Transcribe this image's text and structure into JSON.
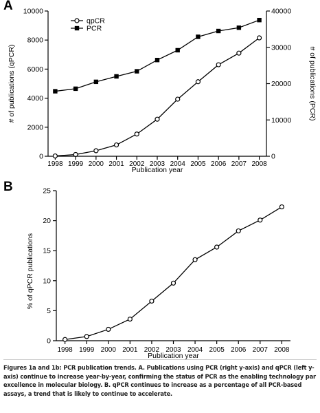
{
  "panels": {
    "a_letter": "A",
    "b_letter": "B"
  },
  "caption": "Figures 1a and 1b: PCR publication trends. A. Publications using PCR (right y-axis) and qPCR (left y-axis) continue to increase year-by-year, confirming the status of PCR as the enabling technology par excellence in molecular biology. B. qPCR continues to increase as a percentage of all PCR-based assays, a trend that is likely to continue to accelerate.",
  "chart_data": [
    {
      "type": "line",
      "panel": "A",
      "x": [
        1998,
        1999,
        2000,
        2001,
        2002,
        2003,
        2004,
        2005,
        2006,
        2007,
        2008
      ],
      "xlabel": "Publication year",
      "ylabel_left": "# of publications (qPCR)",
      "ylabel_right": "# of publications (PCR)",
      "ylim_left": [
        0,
        10000
      ],
      "yticks_left": [
        0,
        2000,
        4000,
        6000,
        8000,
        10000
      ],
      "ylim_right": [
        0,
        40000
      ],
      "yticks_right": [
        0,
        10000,
        20000,
        30000,
        40000
      ],
      "grid": false,
      "legend_position": "top-left",
      "series": [
        {
          "name": "qpCR",
          "axis": "left",
          "marker": "open-circle",
          "values": [
            20,
            120,
            380,
            780,
            1530,
            2550,
            3930,
            5130,
            6300,
            7100,
            8150
          ]
        },
        {
          "name": "PCR",
          "axis": "right",
          "marker": "filled-square",
          "values": [
            17900,
            18600,
            20500,
            22000,
            23400,
            26500,
            29200,
            32900,
            34500,
            35400,
            37500
          ]
        }
      ]
    },
    {
      "type": "line",
      "panel": "B",
      "x": [
        1998,
        1999,
        2000,
        2001,
        2002,
        2003,
        2004,
        2005,
        2006,
        2007,
        2008
      ],
      "xlabel": "Publication year",
      "ylabel": "% of qPCR publications",
      "ylim": [
        0,
        25
      ],
      "yticks": [
        0,
        5,
        10,
        15,
        20,
        25
      ],
      "grid": false,
      "series": [
        {
          "name": "",
          "marker": "open-circle",
          "values": [
            0.2,
            0.7,
            1.9,
            3.6,
            6.6,
            9.6,
            13.5,
            15.6,
            18.3,
            20.1,
            22.3
          ]
        }
      ]
    }
  ]
}
